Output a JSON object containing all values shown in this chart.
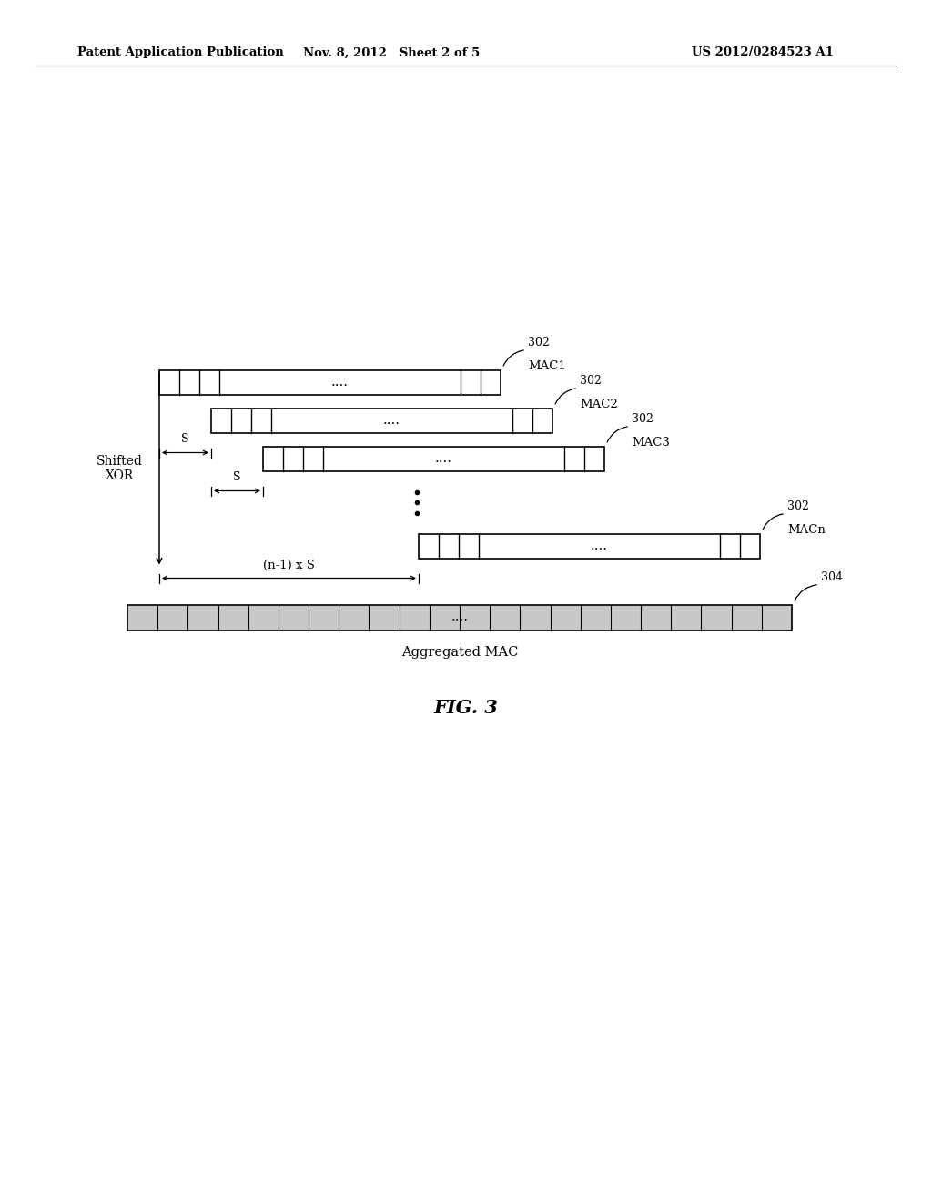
{
  "bg_color": "#ffffff",
  "header_left": "Patent Application Publication",
  "header_mid": "Nov. 8, 2012   Sheet 2 of 5",
  "header_right": "US 2012/0284523 A1",
  "fig_caption": "FIG. 3",
  "shifted_xor_label": "Shifted\nXOR",
  "aggregated_mac_label": "Aggregated MAC",
  "ref_302": "302",
  "ref_304": "304",
  "mac_labels": [
    "MAC1",
    "MAC2",
    "MAC3",
    "MACn"
  ],
  "s_label": "S",
  "n1s_label": "(n-1) x S",
  "dots_label": "....",
  "text_color": "#000000"
}
